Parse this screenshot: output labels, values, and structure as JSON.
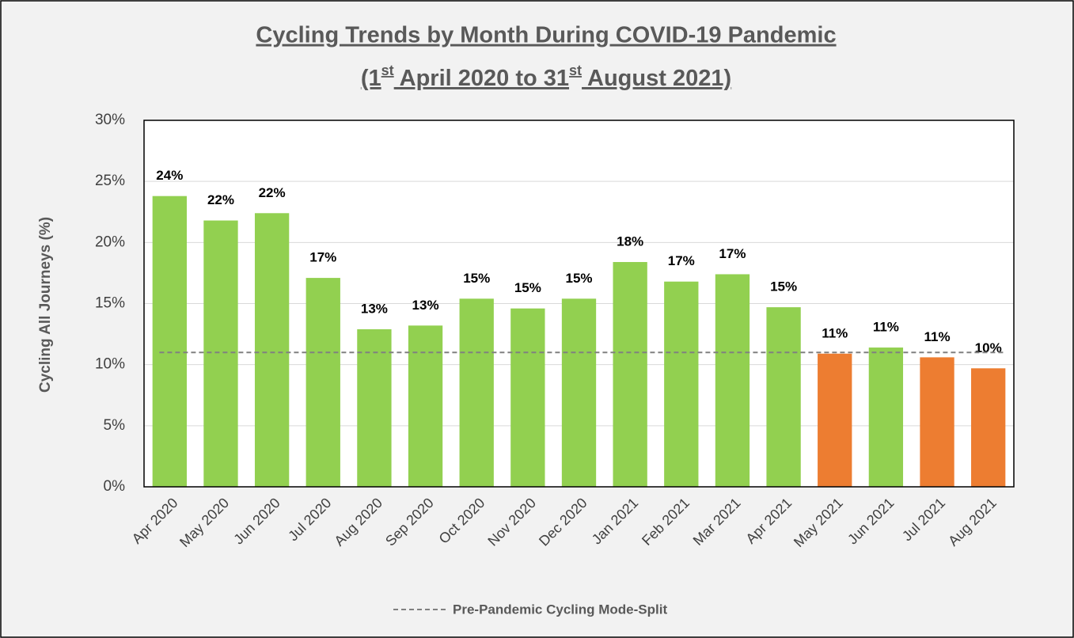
{
  "chart_data": {
    "type": "bar",
    "title": "Cycling Trends by Month During COVID-19 Pandemic",
    "subtitle_parts": [
      "(1",
      "st",
      " April 2020 to 31",
      "st",
      " August 2021)"
    ],
    "y_label": "Cycling All Journeys (%)",
    "categories": [
      "Apr 2020",
      "May 2020",
      "Jun 2020",
      "Jul 2020",
      "Aug 2020",
      "Sep 2020",
      "Oct 2020",
      "Nov 2020",
      "Dec 2020",
      "Jan 2021",
      "Feb 2021",
      "Mar 2021",
      "Apr 2021",
      "May 2021",
      "Jun 2021",
      "Jul 2021",
      "Aug 2021"
    ],
    "values": [
      23.8,
      21.8,
      22.4,
      17.1,
      12.9,
      13.2,
      15.4,
      14.6,
      15.4,
      18.4,
      16.8,
      17.4,
      14.7,
      10.9,
      11.4,
      10.6,
      9.7
    ],
    "value_labels": [
      "24%",
      "22%",
      "22%",
      "17%",
      "13%",
      "13%",
      "15%",
      "15%",
      "15%",
      "18%",
      "17%",
      "17%",
      "15%",
      "11%",
      "11%",
      "11%",
      "10%"
    ],
    "colors": [
      "#92d050",
      "#92d050",
      "#92d050",
      "#92d050",
      "#92d050",
      "#92d050",
      "#92d050",
      "#92d050",
      "#92d050",
      "#92d050",
      "#92d050",
      "#92d050",
      "#92d050",
      "#ed7d31",
      "#92d050",
      "#ed7d31",
      "#ed7d31"
    ],
    "reference_line": {
      "name": "Pre-Pandemic Cycling Mode-Split",
      "value": 11,
      "color": "#808080"
    },
    "ylim": [
      0,
      30
    ],
    "yticks": [
      {
        "value": 0,
        "label": "0%"
      },
      {
        "value": 5,
        "label": "5%"
      },
      {
        "value": 10,
        "label": "10%"
      },
      {
        "value": 15,
        "label": "15%"
      },
      {
        "value": 20,
        "label": "20%"
      },
      {
        "value": 25,
        "label": "25%"
      },
      {
        "value": 30,
        "label": "30%"
      }
    ],
    "grid": true
  }
}
